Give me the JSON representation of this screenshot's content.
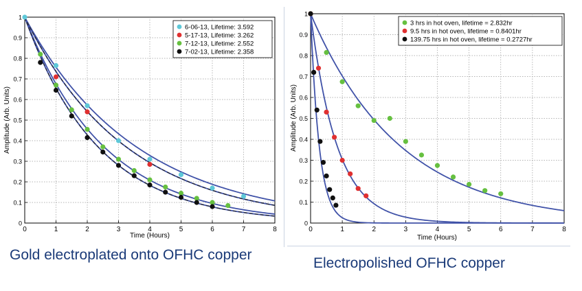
{
  "colors": {
    "fit": "#4052a8",
    "frame": "#000000",
    "grid": "#9a9a9a",
    "caption": "#1a3a78",
    "cyan": "#5ec8d8",
    "red": "#e03030",
    "green": "#66c040",
    "black": "#101010"
  },
  "chart_data": [
    {
      "type": "scatter",
      "title": "",
      "xlabel": "Time (Hours)",
      "ylabel": "Amplitude (Arb. Units)",
      "xlim": [
        0,
        8
      ],
      "ylim": [
        0,
        1
      ],
      "x_ticks": [
        "0",
        "1",
        "2",
        "3",
        "4",
        "5",
        "6",
        "7",
        "8"
      ],
      "y_ticks": [
        "0",
        "0.1",
        "0.2",
        "0.3",
        "0.4",
        "0.5",
        "0.6",
        "0.7",
        "0.8",
        "0.9",
        "1"
      ],
      "grid": true,
      "legend_position": "top-right",
      "series": [
        {
          "name": "6-06-13, Lifetime: 3.592",
          "color": "cyan",
          "lifetime": 3.592,
          "fit_style": "solid",
          "x": [
            0,
            1,
            2,
            3,
            4,
            5,
            6,
            7
          ],
          "y": [
            1.0,
            0.765,
            0.57,
            0.4,
            0.31,
            0.235,
            0.17,
            0.13
          ]
        },
        {
          "name": "5-17-13, Lifetime: 3.262",
          "color": "red",
          "lifetime": 3.262,
          "fit_style": "dashed",
          "x": [
            1,
            2,
            4
          ],
          "y": [
            0.71,
            0.54,
            0.285
          ]
        },
        {
          "name": "7-12-13, Lifetime: 2.552",
          "color": "green",
          "lifetime": 2.552,
          "fit_style": "solid",
          "x": [
            0.5,
            1,
            1.5,
            2,
            2.5,
            3,
            3.5,
            4,
            4.5,
            5,
            5.5,
            6,
            6.5
          ],
          "y": [
            0.82,
            0.67,
            0.55,
            0.455,
            0.37,
            0.31,
            0.255,
            0.21,
            0.175,
            0.145,
            0.12,
            0.1,
            0.085
          ]
        },
        {
          "name": "7-02-13, Lifetime: 2.358",
          "color": "black",
          "lifetime": 2.358,
          "fit_style": "dashed",
          "x": [
            0.5,
            1,
            1.5,
            2,
            2.5,
            3,
            3.5,
            4,
            4.5,
            5,
            5.5,
            6
          ],
          "y": [
            0.78,
            0.645,
            0.52,
            0.415,
            0.345,
            0.28,
            0.23,
            0.185,
            0.15,
            0.125,
            0.1,
            0.08
          ]
        }
      ]
    },
    {
      "type": "scatter",
      "title": "",
      "xlabel": "Time (Hours)",
      "ylabel": "Amplitude (Arb. Units)",
      "xlim": [
        0,
        8
      ],
      "ylim": [
        0,
        1
      ],
      "x_ticks": [
        "0",
        "1",
        "2",
        "3",
        "4",
        "5",
        "6",
        "7",
        "8"
      ],
      "y_ticks": [
        "0",
        "0.1",
        "0.2",
        "0.3",
        "0.4",
        "0.5",
        "0.6",
        "0.7",
        "0.8",
        "0.9",
        "1"
      ],
      "grid": true,
      "legend_position": "top-right",
      "series": [
        {
          "name": "3 hrs in hot oven, lifetime = 2.832hr",
          "color": "green",
          "lifetime": 2.832,
          "fit_style": "solid",
          "x": [
            0,
            0.5,
            1,
            1.5,
            2,
            2.5,
            3,
            3.5,
            4,
            4.5,
            5,
            5.5,
            6
          ],
          "y": [
            1.0,
            0.815,
            0.675,
            0.56,
            0.49,
            0.5,
            0.39,
            0.325,
            0.275,
            0.22,
            0.185,
            0.155,
            0.14
          ]
        },
        {
          "name": "9.5 hrs in hot oven, lifetime = 0.8401hr",
          "color": "red",
          "lifetime": 0.8401,
          "fit_style": "solid",
          "x": [
            0,
            0.25,
            0.5,
            0.75,
            1.0,
            1.25,
            1.5,
            1.75
          ],
          "y": [
            1.0,
            0.74,
            0.53,
            0.41,
            0.3,
            0.235,
            0.165,
            0.13
          ]
        },
        {
          "name": "139.75 hrs in hot oven, lifetime = 0.2727hr",
          "color": "black",
          "lifetime": 0.2727,
          "fit_style": "solid",
          "x": [
            0,
            0.1,
            0.2,
            0.3,
            0.4,
            0.5,
            0.6,
            0.7,
            0.8
          ],
          "y": [
            1.0,
            0.72,
            0.54,
            0.39,
            0.29,
            0.225,
            0.16,
            0.12,
            0.085
          ]
        }
      ]
    }
  ],
  "captions": {
    "left": "Gold electroplated onto OFHC copper",
    "right": "Electropolished OFHC copper"
  }
}
